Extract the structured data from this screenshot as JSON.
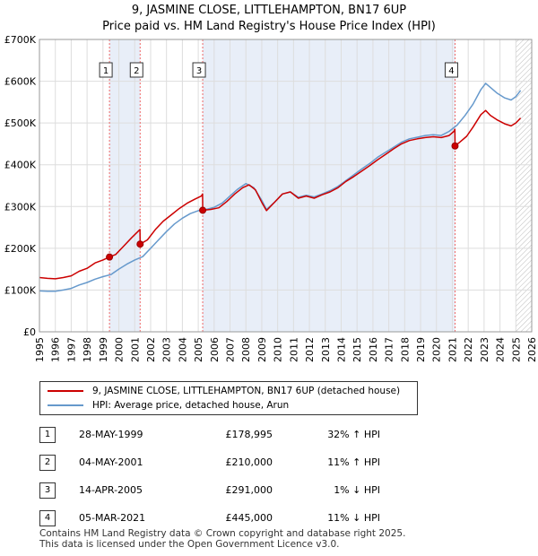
{
  "header": {
    "title_line1": "9, JASMINE CLOSE, LITTLEHAMPTON, BN17 6UP",
    "title_line2": "Price paid vs. HM Land Registry's House Price Index (HPI)"
  },
  "chart_data": {
    "type": "line",
    "title": "Price paid vs. HM Land Registry's House Price Index (HPI)",
    "xlim": [
      1995,
      2026
    ],
    "ylim": [
      0,
      700000
    ],
    "x_ticks": [
      1995,
      1996,
      1997,
      1998,
      1999,
      2000,
      2001,
      2002,
      2003,
      2004,
      2005,
      2006,
      2007,
      2008,
      2009,
      2010,
      2011,
      2012,
      2013,
      2014,
      2015,
      2016,
      2017,
      2018,
      2019,
      2020,
      2021,
      2022,
      2023,
      2024,
      2025,
      2026
    ],
    "y_ticks": [
      0,
      100000,
      200000,
      300000,
      400000,
      500000,
      600000,
      700000
    ],
    "y_tick_labels": [
      "£0",
      "£100K",
      "£200K",
      "£300K",
      "£400K",
      "£500K",
      "£600K",
      "£700K"
    ],
    "grid": true,
    "shaded_periods": [
      [
        1999.41,
        2001.34
      ],
      [
        2005.28,
        2021.17
      ]
    ],
    "hatched_from": 2025.0,
    "series": [
      {
        "name": "9, JASMINE CLOSE, LITTLEHAMPTON, BN17 6UP (detached house)",
        "color": "#cc0000",
        "points": [
          [
            1995.0,
            130000
          ],
          [
            1995.5,
            128000
          ],
          [
            1996.0,
            127000
          ],
          [
            1996.5,
            130000
          ],
          [
            1997.0,
            134000
          ],
          [
            1997.5,
            145000
          ],
          [
            1998.0,
            152000
          ],
          [
            1998.5,
            165000
          ],
          [
            1999.0,
            172000
          ],
          [
            1999.41,
            178995
          ],
          [
            1999.8,
            185000
          ],
          [
            2000.3,
            205000
          ],
          [
            2000.8,
            225000
          ],
          [
            2001.2,
            240000
          ],
          [
            2001.33,
            245000
          ],
          [
            2001.34,
            210000
          ],
          [
            2001.8,
            220000
          ],
          [
            2002.3,
            245000
          ],
          [
            2002.8,
            265000
          ],
          [
            2003.3,
            280000
          ],
          [
            2003.8,
            295000
          ],
          [
            2004.3,
            308000
          ],
          [
            2004.8,
            318000
          ],
          [
            2005.2,
            325000
          ],
          [
            2005.27,
            330000
          ],
          [
            2005.28,
            291000
          ],
          [
            2005.8,
            293000
          ],
          [
            2006.3,
            297000
          ],
          [
            2006.8,
            312000
          ],
          [
            2007.3,
            330000
          ],
          [
            2007.8,
            345000
          ],
          [
            2008.2,
            352000
          ],
          [
            2008.6,
            340000
          ],
          [
            2009.0,
            310000
          ],
          [
            2009.3,
            290000
          ],
          [
            2009.8,
            310000
          ],
          [
            2010.3,
            330000
          ],
          [
            2010.8,
            335000
          ],
          [
            2011.3,
            320000
          ],
          [
            2011.8,
            325000
          ],
          [
            2012.3,
            320000
          ],
          [
            2012.8,
            328000
          ],
          [
            2013.3,
            335000
          ],
          [
            2013.8,
            345000
          ],
          [
            2014.3,
            360000
          ],
          [
            2014.8,
            372000
          ],
          [
            2015.3,
            385000
          ],
          [
            2015.8,
            398000
          ],
          [
            2016.3,
            412000
          ],
          [
            2016.8,
            425000
          ],
          [
            2017.3,
            438000
          ],
          [
            2017.8,
            450000
          ],
          [
            2018.3,
            458000
          ],
          [
            2018.8,
            462000
          ],
          [
            2019.3,
            465000
          ],
          [
            2019.8,
            467000
          ],
          [
            2020.3,
            465000
          ],
          [
            2020.8,
            470000
          ],
          [
            2021.1,
            480000
          ],
          [
            2021.16,
            485000
          ],
          [
            2021.17,
            445000
          ],
          [
            2021.5,
            455000
          ],
          [
            2021.9,
            468000
          ],
          [
            2022.3,
            490000
          ],
          [
            2022.8,
            520000
          ],
          [
            2023.1,
            530000
          ],
          [
            2023.4,
            518000
          ],
          [
            2023.8,
            508000
          ],
          [
            2024.3,
            498000
          ],
          [
            2024.7,
            493000
          ],
          [
            2025.0,
            500000
          ],
          [
            2025.3,
            512000
          ]
        ]
      },
      {
        "name": "HPI: Average price, detached house, Arun",
        "color": "#6699cc",
        "points": [
          [
            1995.0,
            98000
          ],
          [
            1995.5,
            97000
          ],
          [
            1996.0,
            97000
          ],
          [
            1996.5,
            100000
          ],
          [
            1997.0,
            104000
          ],
          [
            1997.5,
            112000
          ],
          [
            1998.0,
            118000
          ],
          [
            1998.5,
            126000
          ],
          [
            1999.0,
            132000
          ],
          [
            1999.5,
            137000
          ],
          [
            2000.0,
            150000
          ],
          [
            2000.5,
            162000
          ],
          [
            2001.0,
            172000
          ],
          [
            2001.5,
            180000
          ],
          [
            2002.0,
            200000
          ],
          [
            2002.5,
            220000
          ],
          [
            2003.0,
            240000
          ],
          [
            2003.5,
            258000
          ],
          [
            2004.0,
            272000
          ],
          [
            2004.5,
            283000
          ],
          [
            2005.0,
            290000
          ],
          [
            2005.5,
            293000
          ],
          [
            2006.0,
            298000
          ],
          [
            2006.5,
            308000
          ],
          [
            2007.0,
            325000
          ],
          [
            2007.5,
            342000
          ],
          [
            2008.0,
            355000
          ],
          [
            2008.5,
            345000
          ],
          [
            2009.0,
            315000
          ],
          [
            2009.3,
            293000
          ],
          [
            2009.8,
            310000
          ],
          [
            2010.3,
            330000
          ],
          [
            2010.8,
            335000
          ],
          [
            2011.3,
            322000
          ],
          [
            2011.8,
            327000
          ],
          [
            2012.3,
            323000
          ],
          [
            2012.8,
            330000
          ],
          [
            2013.3,
            338000
          ],
          [
            2013.8,
            348000
          ],
          [
            2014.3,
            362000
          ],
          [
            2014.8,
            376000
          ],
          [
            2015.3,
            390000
          ],
          [
            2015.8,
            403000
          ],
          [
            2016.3,
            418000
          ],
          [
            2016.8,
            430000
          ],
          [
            2017.3,
            442000
          ],
          [
            2017.8,
            454000
          ],
          [
            2018.3,
            462000
          ],
          [
            2018.8,
            466000
          ],
          [
            2019.3,
            470000
          ],
          [
            2019.8,
            472000
          ],
          [
            2020.3,
            470000
          ],
          [
            2020.8,
            480000
          ],
          [
            2021.3,
            495000
          ],
          [
            2021.8,
            518000
          ],
          [
            2022.3,
            545000
          ],
          [
            2022.8,
            580000
          ],
          [
            2023.1,
            595000
          ],
          [
            2023.4,
            585000
          ],
          [
            2023.8,
            572000
          ],
          [
            2024.3,
            560000
          ],
          [
            2024.7,
            555000
          ],
          [
            2025.0,
            563000
          ],
          [
            2025.3,
            578000
          ]
        ]
      }
    ],
    "sales": [
      {
        "num": "1",
        "date": "28-MAY-1999",
        "price": "£178,995",
        "hpi": "32% ↑ HPI",
        "x": 1999.41,
        "y": 178995
      },
      {
        "num": "2",
        "date": "04-MAY-2001",
        "price": "£210,000",
        "hpi": "11% ↑ HPI",
        "x": 2001.34,
        "y": 210000
      },
      {
        "num": "3",
        "date": "14-APR-2005",
        "price": "£291,000",
        "hpi": "1% ↓ HPI",
        "x": 2005.28,
        "y": 291000
      },
      {
        "num": "4",
        "date": "05-MAR-2021",
        "price": "£445,000",
        "hpi": "11% ↓ HPI",
        "x": 2021.17,
        "y": 445000
      }
    ]
  },
  "legend": {
    "property_label": "9, JASMINE CLOSE, LITTLEHAMPTON, BN17 6UP (detached house)",
    "hpi_label": "HPI: Average price, detached house, Arun",
    "property_color": "#cc0000",
    "hpi_color": "#6699cc"
  },
  "footer": {
    "line1": "Contains HM Land Registry data © Crown copyright and database right 2025.",
    "line2": "This data is licensed under the Open Government Licence v3.0."
  }
}
